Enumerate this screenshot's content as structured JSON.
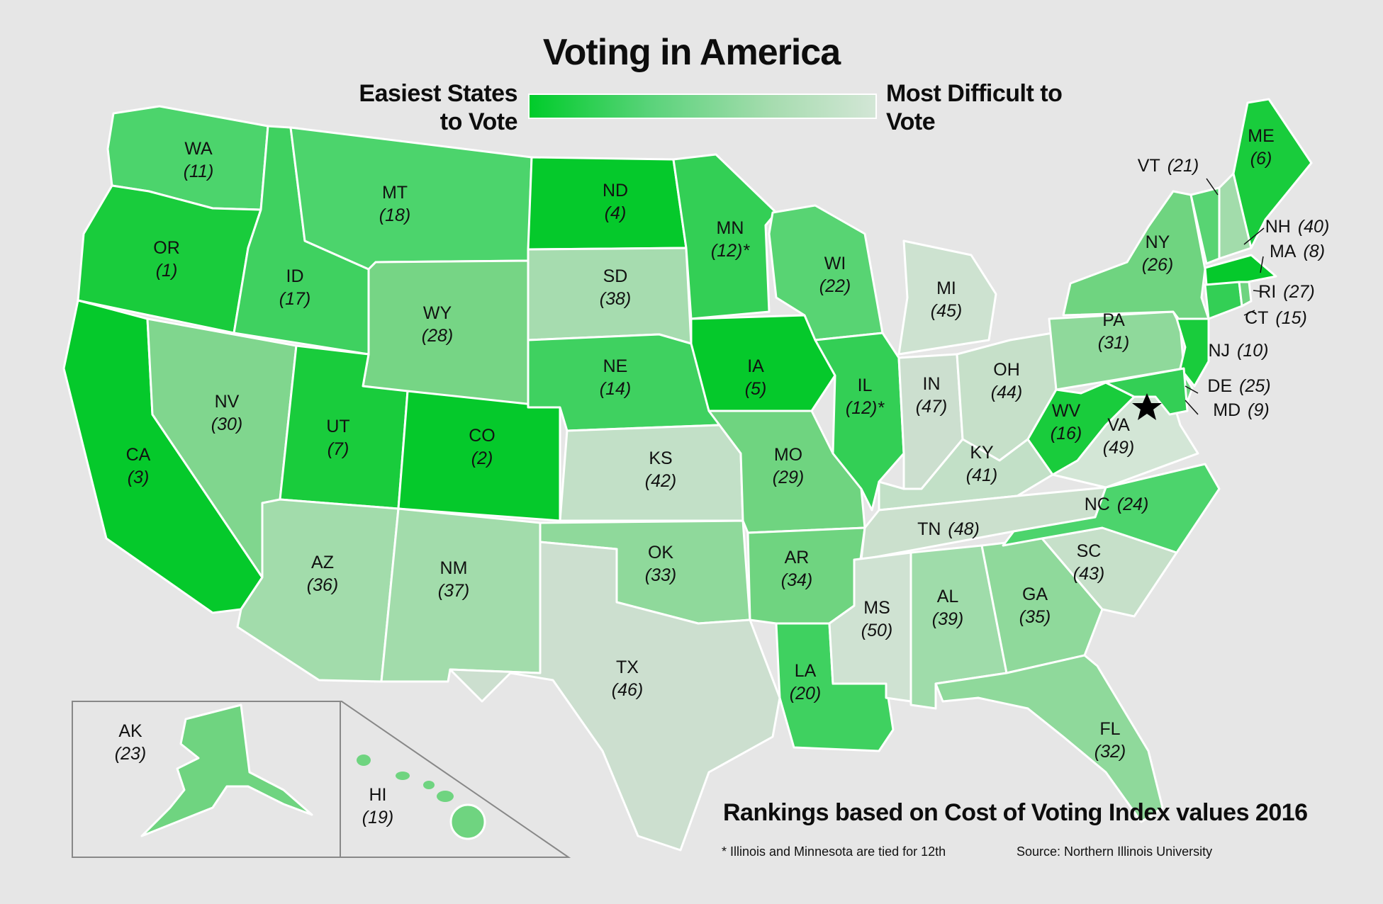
{
  "title": "Voting in America",
  "legend": {
    "easiest": "Easiest States to Vote",
    "difficult": "Most Difficult to Vote",
    "colors": [
      "#00cc2a",
      "#d3e6d6"
    ]
  },
  "caption": "Rankings based on Cost of Voting Index values 2016",
  "footnote": "* Illinois and Minnesota are tied for 12th",
  "source": "Source: Northern Illinois University",
  "marker_icon": "star-icon",
  "states": [
    {
      "code": "WA",
      "rank": "(11)"
    },
    {
      "code": "OR",
      "rank": "(1)"
    },
    {
      "code": "CA",
      "rank": "(3)"
    },
    {
      "code": "ID",
      "rank": "(17)"
    },
    {
      "code": "NV",
      "rank": "(30)"
    },
    {
      "code": "MT",
      "rank": "(18)"
    },
    {
      "code": "WY",
      "rank": "(28)"
    },
    {
      "code": "UT",
      "rank": "(7)"
    },
    {
      "code": "AZ",
      "rank": "(36)"
    },
    {
      "code": "CO",
      "rank": "(2)"
    },
    {
      "code": "NM",
      "rank": "(37)"
    },
    {
      "code": "ND",
      "rank": "(4)"
    },
    {
      "code": "SD",
      "rank": "(38)"
    },
    {
      "code": "NE",
      "rank": "(14)"
    },
    {
      "code": "KS",
      "rank": "(42)"
    },
    {
      "code": "OK",
      "rank": "(33)"
    },
    {
      "code": "TX",
      "rank": "(46)"
    },
    {
      "code": "MN",
      "rank": "(12)*"
    },
    {
      "code": "IA",
      "rank": "(5)"
    },
    {
      "code": "MO",
      "rank": "(29)"
    },
    {
      "code": "AR",
      "rank": "(34)"
    },
    {
      "code": "LA",
      "rank": "(20)"
    },
    {
      "code": "WI",
      "rank": "(22)"
    },
    {
      "code": "IL",
      "rank": "(12)*"
    },
    {
      "code": "MI",
      "rank": "(45)"
    },
    {
      "code": "IN",
      "rank": "(47)"
    },
    {
      "code": "OH",
      "rank": "(44)"
    },
    {
      "code": "KY",
      "rank": "(41)"
    },
    {
      "code": "TN",
      "rank": "(48)"
    },
    {
      "code": "MS",
      "rank": "(50)"
    },
    {
      "code": "AL",
      "rank": "(39)"
    },
    {
      "code": "GA",
      "rank": "(35)"
    },
    {
      "code": "FL",
      "rank": "(32)"
    },
    {
      "code": "SC",
      "rank": "(43)"
    },
    {
      "code": "NC",
      "rank": "(24)"
    },
    {
      "code": "VA",
      "rank": "(49)"
    },
    {
      "code": "WV",
      "rank": "(16)"
    },
    {
      "code": "PA",
      "rank": "(31)"
    },
    {
      "code": "NY",
      "rank": "(26)"
    },
    {
      "code": "VT",
      "rank": "(21)"
    },
    {
      "code": "NH",
      "rank": "(40)"
    },
    {
      "code": "ME",
      "rank": "(6)"
    },
    {
      "code": "MA",
      "rank": "(8)"
    },
    {
      "code": "RI",
      "rank": "(27)"
    },
    {
      "code": "CT",
      "rank": "(15)"
    },
    {
      "code": "NJ",
      "rank": "(10)"
    },
    {
      "code": "DE",
      "rank": "(25)"
    },
    {
      "code": "MD",
      "rank": "(9)"
    },
    {
      "code": "AK",
      "rank": "(23)"
    },
    {
      "code": "HI",
      "rank": "(19)"
    }
  ]
}
